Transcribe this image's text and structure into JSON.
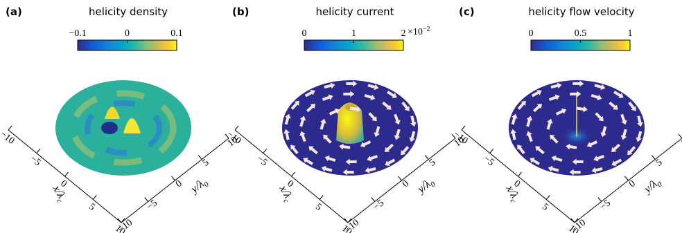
{
  "panels": [
    {
      "label": "(a)",
      "title": "helicity density",
      "colorbar": {
        "ticks": [
          "−0.1",
          "0",
          "0.1"
        ]
      },
      "x_axis": {
        "ticks": [
          "−10",
          "−5",
          "0",
          "5",
          "10"
        ],
        "label": {
          "var": "x/λ",
          "sub": "c"
        }
      },
      "y_axis": {
        "ticks": [
          "−10",
          "−5",
          "0",
          "5",
          "10"
        ],
        "label": {
          "var": "y/λ",
          "sub": "0"
        }
      }
    },
    {
      "label": "(b)",
      "title": "helicity current",
      "colorbar": {
        "ticks": [
          "0",
          "1",
          "2"
        ],
        "exponent": {
          "base": "×10",
          "power": "−2"
        }
      },
      "x_axis": {
        "ticks": [
          "−10",
          "−5",
          "0",
          "5",
          "10"
        ],
        "label": {
          "var": "x/λ",
          "sub": "c"
        }
      },
      "y_axis": {
        "ticks": [
          "−10",
          "−5",
          "0",
          "5",
          "10"
        ],
        "label": {
          "var": "y/λ",
          "sub": "0"
        }
      }
    },
    {
      "label": "(c)",
      "title": "helicity flow velocity",
      "colorbar": {
        "ticks": [
          "0",
          "0.5",
          "1"
        ]
      },
      "x_axis": {
        "ticks": [
          "−10",
          "−5",
          "0",
          "5",
          "10"
        ],
        "label": {
          "var": "x/λ",
          "sub": "c"
        }
      },
      "y_axis": {
        "ticks": [
          "−10",
          "−5",
          "0",
          "5",
          "10"
        ],
        "label": {
          "var": "y/λ",
          "sub": "0"
        }
      }
    }
  ]
}
